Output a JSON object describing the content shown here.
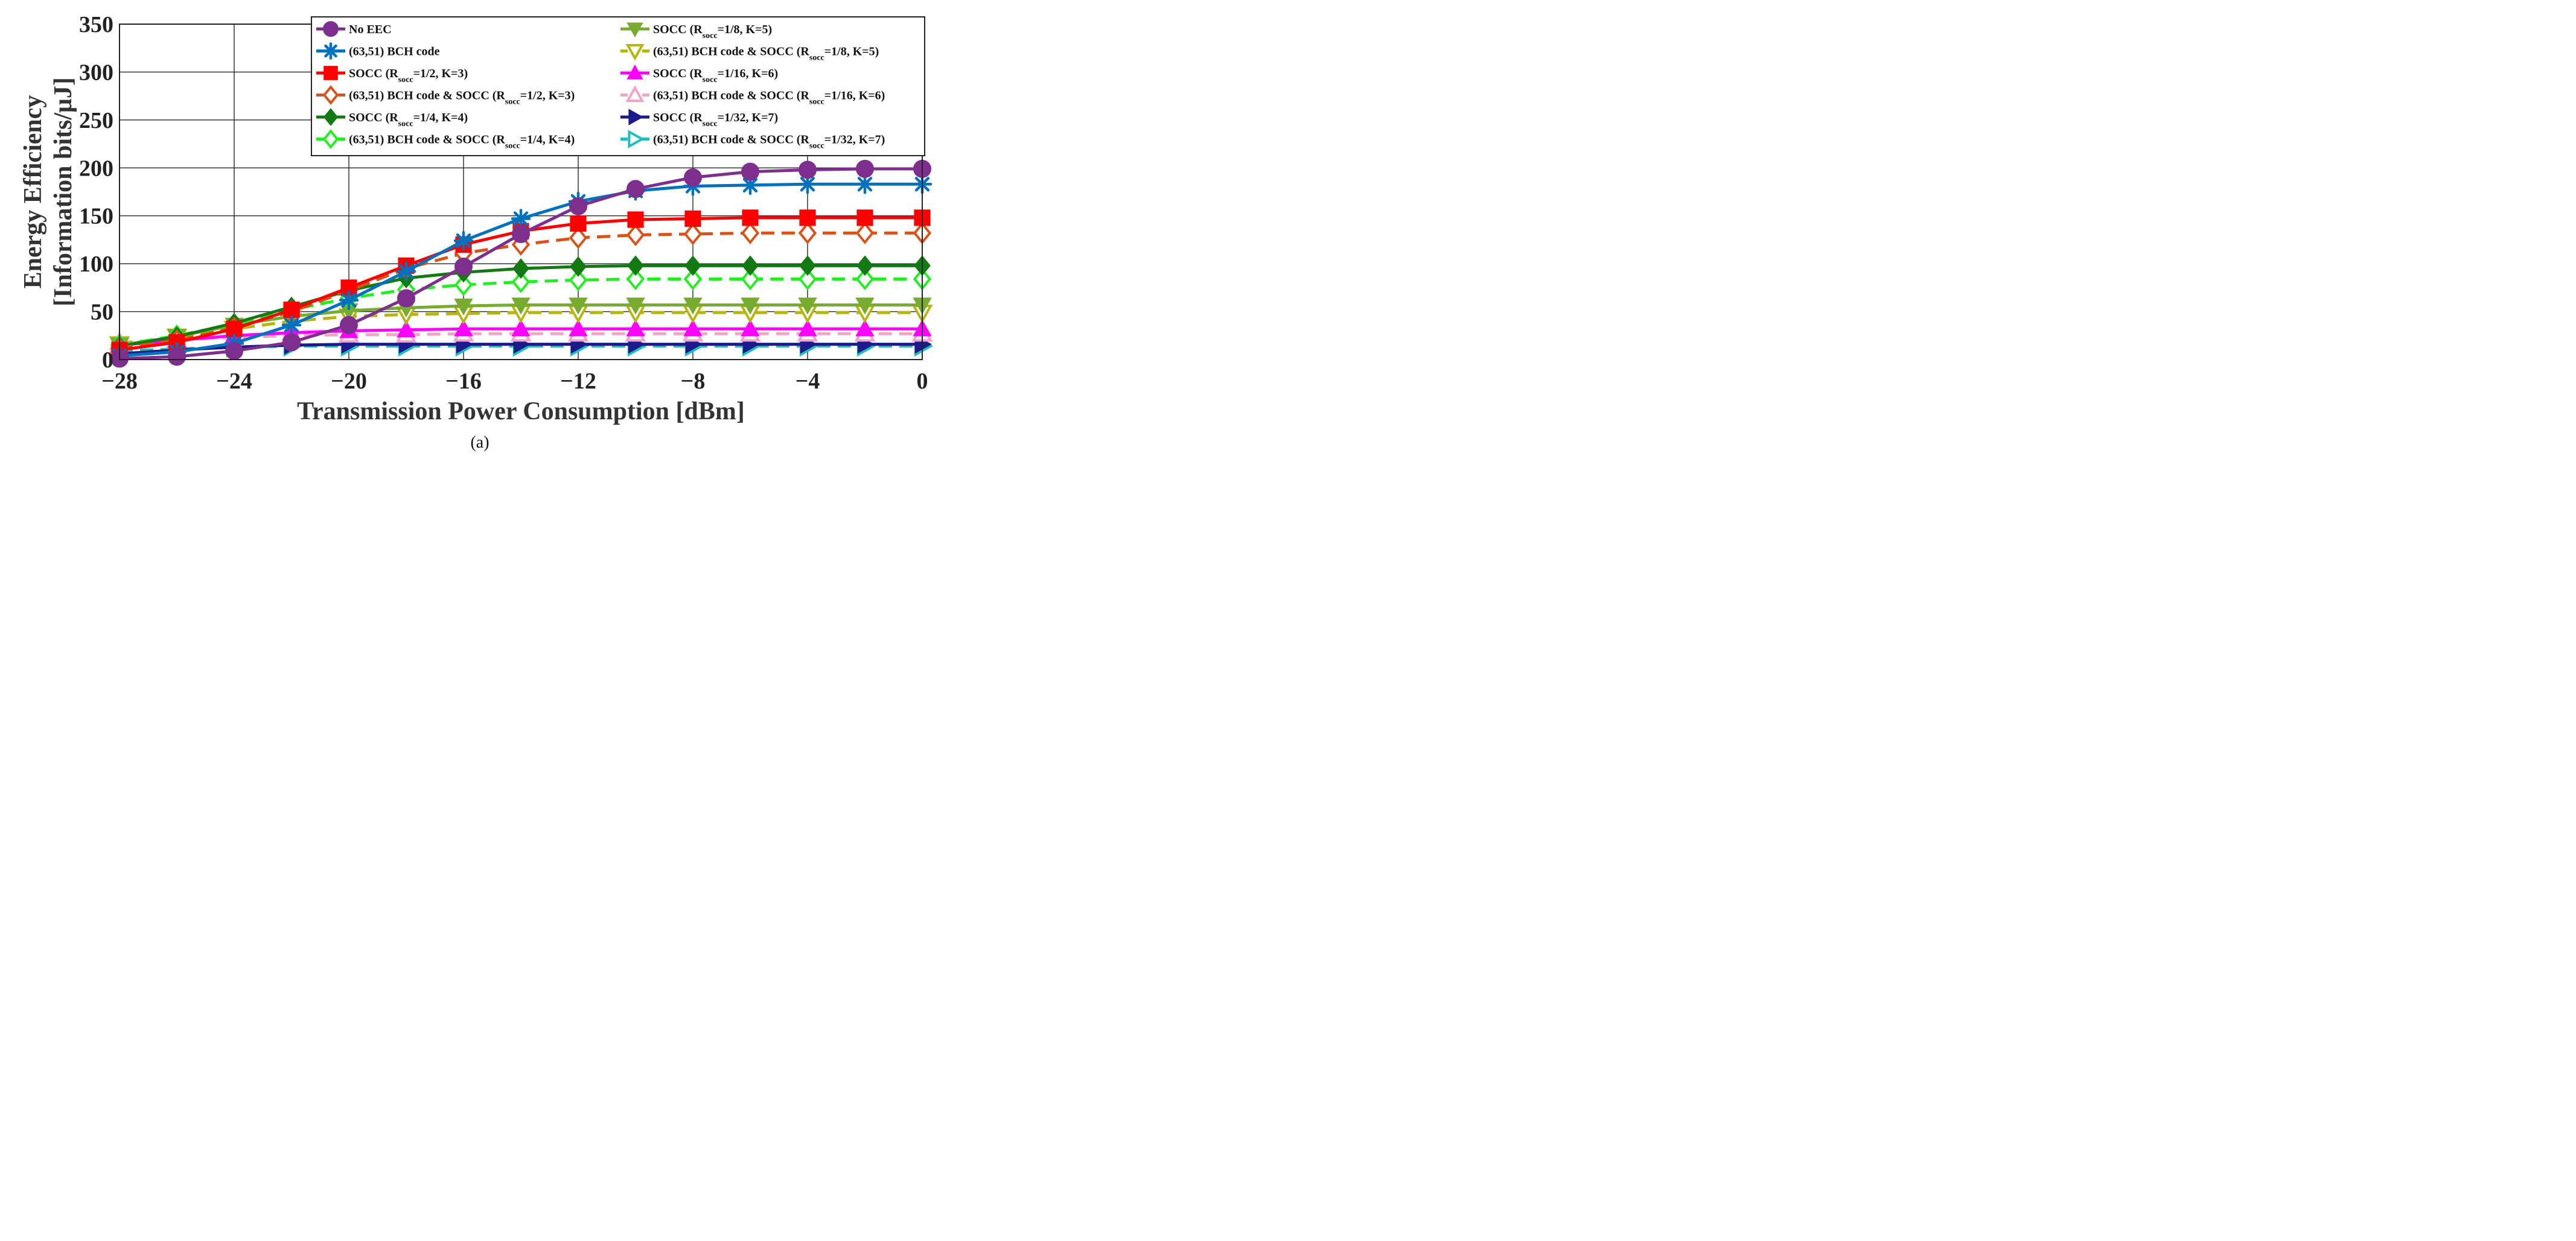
{
  "chart_data": {
    "type": "line",
    "title": "",
    "xlabel": "Transmission Power Consumption [dBm]",
    "ylabel_line1": "Energy Efficiency",
    "ylabel_line2": "[Information bits/μJ]",
    "caption": "(a)",
    "xlim": [
      -28,
      0
    ],
    "ylim": [
      0,
      350
    ],
    "xticks": [
      -28,
      -24,
      -20,
      -16,
      -12,
      -8,
      -4,
      0
    ],
    "xtick_labels": [
      "−28",
      "−24",
      "−20",
      "−16",
      "−12",
      "−8",
      "−4",
      "0"
    ],
    "yticks": [
      0,
      50,
      100,
      150,
      200,
      250,
      300,
      350
    ],
    "ytick_labels": [
      "0",
      "50",
      "100",
      "150",
      "200",
      "250",
      "300",
      "350"
    ],
    "grid": true,
    "legend_position": "top-right",
    "x": [
      -28,
      -26,
      -24,
      -22,
      -20,
      -18,
      -16,
      -14,
      -12,
      -10,
      -8,
      -6,
      -4,
      -2,
      0
    ],
    "series": [
      {
        "name": "No EEC",
        "label_main": "No EEC",
        "color": "#7E2F8E",
        "marker": "circle",
        "fill": true,
        "dash": false,
        "values": [
          1,
          3,
          9,
          18,
          36,
          64,
          97,
          131,
          160,
          178,
          190,
          196,
          198,
          199,
          199
        ]
      },
      {
        "name": "(63,51) BCH code",
        "label_main": "(63,51) BCH code",
        "color": "#0072BD",
        "marker": "asterisk",
        "fill": false,
        "dash": false,
        "values": [
          4,
          8,
          17,
          36,
          62,
          92,
          124,
          147,
          165,
          176,
          181,
          182,
          183,
          183,
          183
        ]
      },
      {
        "name": "SOCC (Rsocc=1/2, K=3)",
        "label_main": "SOCC (R",
        "label_sub": "socc",
        "label_tail": "=1/2, K=3)",
        "color": "#FF0000",
        "marker": "square",
        "fill": true,
        "dash": false,
        "values": [
          10,
          18,
          32,
          52,
          75,
          98,
          120,
          134,
          142,
          146,
          147,
          148,
          148,
          148,
          148
        ]
      },
      {
        "name": "(63,51) BCH code & SOCC (Rsocc=1/2, K=3)",
        "label_main": "(63,51) BCH code & SOCC (R",
        "label_sub": "socc",
        "label_tail": "=1/2, K=3)",
        "color": "#D95319",
        "marker": "diamond",
        "fill": false,
        "dash": true,
        "values": [
          12,
          20,
          33,
          50,
          72,
          95,
          111,
          120,
          127,
          130,
          131,
          132,
          132,
          132,
          132
        ]
      },
      {
        "name": "SOCC (Rsocc=1/4, K=4)",
        "label_main": "SOCC (R",
        "label_sub": "socc",
        "label_tail": "=1/4, K=4)",
        "color": "#137A13",
        "marker": "diamond",
        "fill": true,
        "dash": false,
        "values": [
          14,
          24,
          38,
          55,
          72,
          85,
          91,
          95,
          97,
          98,
          98,
          98,
          98,
          98,
          98
        ]
      },
      {
        "name": "(63,51) BCH code & SOCC (Rsocc=1/4, K=4)",
        "label_main": "(63,51) BCH code & SOCC (R",
        "label_sub": "socc",
        "label_tail": "=1/4, K=4)",
        "color": "#22EE22",
        "marker": "diamond",
        "fill": false,
        "dash": true,
        "values": [
          15,
          25,
          37,
          52,
          64,
          73,
          78,
          81,
          83,
          84,
          84,
          84,
          84,
          84,
          84
        ]
      },
      {
        "name": "SOCC (Rsocc=1/8, K=5)",
        "label_main": "SOCC (R",
        "label_sub": "socc",
        "label_tail": "=1/8, K=5)",
        "color": "#77AC30",
        "marker": "triangle-down",
        "fill": true,
        "dash": false,
        "values": [
          15,
          24,
          36,
          45,
          51,
          54,
          56,
          57,
          57,
          57,
          57,
          57,
          57,
          57,
          57
        ]
      },
      {
        "name": "(63,51) BCH code & SOCC (Rsocc=1/8, K=5)",
        "label_main": "(63,51) BCH code & SOCC (R",
        "label_sub": "socc",
        "label_tail": "=1/8, K=5)",
        "color": "#B5B513",
        "marker": "triangle-down",
        "fill": false,
        "dash": true,
        "values": [
          16,
          24,
          32,
          40,
          45,
          47,
          48,
          49,
          49,
          49,
          49,
          49,
          49,
          49,
          49
        ]
      },
      {
        "name": "SOCC (Rsocc=1/16, K=6)",
        "label_main": "SOCC (R",
        "label_sub": "socc",
        "label_tail": "=1/16, K=6)",
        "color": "#FF00FF",
        "marker": "triangle-up",
        "fill": true,
        "dash": false,
        "values": [
          15,
          20,
          25,
          28,
          30,
          31,
          32,
          32,
          32,
          32,
          32,
          32,
          32,
          32,
          32
        ]
      },
      {
        "name": "(63,51) BCH code & SOCC (Rsocc=1/16, K=6)",
        "label_main": "(63,51) BCH code & SOCC (R",
        "label_sub": "socc",
        "label_tail": "=1/16, K=6)",
        "color": "#F4A3C8",
        "marker": "triangle-up",
        "fill": false,
        "dash": true,
        "values": [
          18,
          21,
          23,
          25,
          26,
          26,
          27,
          27,
          27,
          27,
          27,
          27,
          27,
          27,
          27
        ]
      },
      {
        "name": "SOCC (Rsocc=1/32, K=7)",
        "label_main": "SOCC (R",
        "label_sub": "socc",
        "label_tail": "=1/32, K=7)",
        "color": "#1B1B8C",
        "marker": "triangle-right",
        "fill": true,
        "dash": false,
        "values": [
          6,
          10,
          13,
          15,
          16,
          16,
          16,
          16,
          16,
          16,
          16,
          16,
          16,
          16,
          16
        ]
      },
      {
        "name": "(63,51) BCH code & SOCC (Rsocc=1/32, K=7)",
        "label_main": "(63,51) BCH code & SOCC (R",
        "label_sub": "socc",
        "label_tail": "=1/32, K=7)",
        "color": "#1FBFBF",
        "marker": "triangle-right",
        "fill": false,
        "dash": true,
        "values": [
          9,
          11,
          13,
          14,
          14,
          14,
          14,
          14,
          14,
          14,
          14,
          14,
          14,
          14,
          14
        ]
      }
    ]
  }
}
